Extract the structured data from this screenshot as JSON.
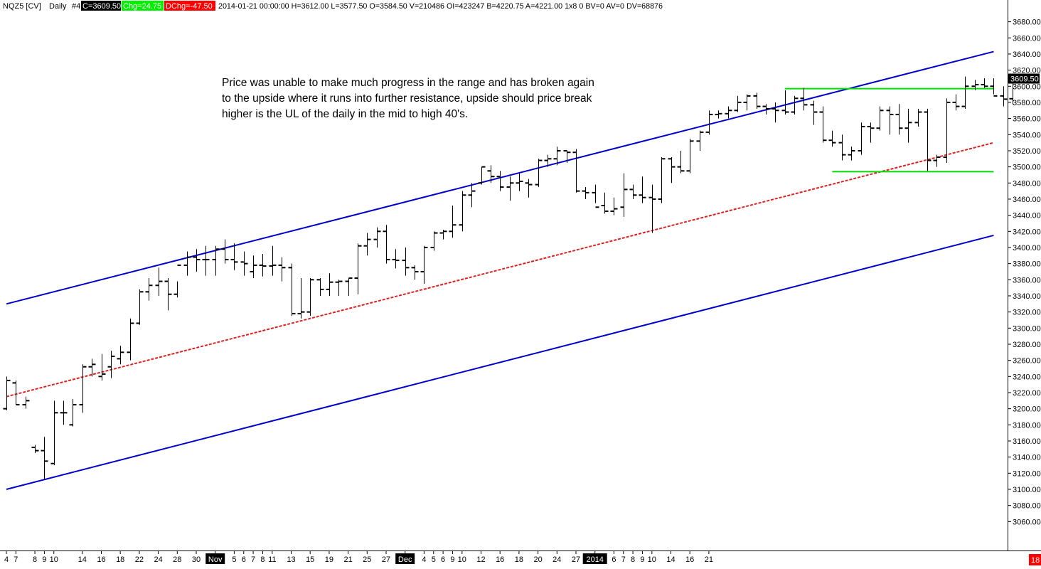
{
  "header": {
    "symbol": "NQZ5 [CV]",
    "period": "Daily",
    "num": "#4",
    "close": "C=3609.50",
    "chg": "Chg=24.75",
    "dchg": "DChg=-47.50",
    "info": "2014-01-21 00:00:00 H=3612.00 L=3577.50 O=3584.50 V=210486 OI=423247 B=4220.75 A=4221.00 1x8 0 BV=0 AV=0 DV=68876"
  },
  "colors": {
    "background": "#ffffff",
    "channel": "#0000cc",
    "midline": "#e02020",
    "support_resistance": "#00dd00",
    "bars": "#000000",
    "close_tag_bg": "#000000",
    "chg_bg": "#00ee00",
    "dchg_bg": "#ff0000",
    "corner_badge": "#ff0000"
  },
  "annotation": {
    "lines": [
      "Price was unable to make much progress in the range and has broken again",
      "to the upside where it runs into further resistance, upside should price break",
      "higher is the UL of the daily in the mid to high 40's."
    ]
  },
  "corner_badge": "18",
  "chart_data": {
    "type": "ohlc",
    "y_axis": {
      "range": [
        3040,
        3692
      ],
      "ticks": [
        "3060.00",
        "3080.00",
        "3100.00",
        "3120.00",
        "3140.00",
        "3160.00",
        "3180.00",
        "3200.00",
        "3220.00",
        "3240.00",
        "3260.00",
        "3280.00",
        "3300.00",
        "3320.00",
        "3340.00",
        "3360.00",
        "3380.00",
        "3400.00",
        "3420.00",
        "3440.00",
        "3460.00",
        "3480.00",
        "3500.00",
        "3520.00",
        "3540.00",
        "3560.00",
        "3580.00",
        "3600.00",
        "3620.00",
        "3640.00",
        "3660.00",
        "3680.00"
      ],
      "last_price_label": "3609.50",
      "last_price": 3609.5
    },
    "x_axis": {
      "labels": [
        {
          "i": 0,
          "text": "4",
          "boxed": false
        },
        {
          "i": 1,
          "text": "7",
          "boxed": false
        },
        {
          "i": 3,
          "text": "8",
          "boxed": false
        },
        {
          "i": 4,
          "text": "9",
          "boxed": false
        },
        {
          "i": 5,
          "text": "10",
          "boxed": false
        },
        {
          "i": 8,
          "text": "14",
          "boxed": false
        },
        {
          "i": 10,
          "text": "16",
          "boxed": false
        },
        {
          "i": 12,
          "text": "18",
          "boxed": false
        },
        {
          "i": 14,
          "text": "22",
          "boxed": false
        },
        {
          "i": 16,
          "text": "24",
          "boxed": false
        },
        {
          "i": 18,
          "text": "28",
          "boxed": false
        },
        {
          "i": 20,
          "text": "30",
          "boxed": false
        },
        {
          "i": 22,
          "text": "Nov",
          "boxed": true
        },
        {
          "i": 24,
          "text": "5",
          "boxed": false
        },
        {
          "i": 25,
          "text": "6",
          "boxed": false
        },
        {
          "i": 26,
          "text": "7",
          "boxed": false
        },
        {
          "i": 27,
          "text": "8",
          "boxed": false
        },
        {
          "i": 28,
          "text": "11",
          "boxed": false
        },
        {
          "i": 30,
          "text": "13",
          "boxed": false
        },
        {
          "i": 32,
          "text": "15",
          "boxed": false
        },
        {
          "i": 34,
          "text": "19",
          "boxed": false
        },
        {
          "i": 36,
          "text": "21",
          "boxed": false
        },
        {
          "i": 38,
          "text": "25",
          "boxed": false
        },
        {
          "i": 40,
          "text": "27",
          "boxed": false
        },
        {
          "i": 42,
          "text": "Dec",
          "boxed": true
        },
        {
          "i": 44,
          "text": "4",
          "boxed": false
        },
        {
          "i": 45,
          "text": "5",
          "boxed": false
        },
        {
          "i": 46,
          "text": "6",
          "boxed": false
        },
        {
          "i": 47,
          "text": "9",
          "boxed": false
        },
        {
          "i": 48,
          "text": "10",
          "boxed": false
        },
        {
          "i": 50,
          "text": "12",
          "boxed": false
        },
        {
          "i": 52,
          "text": "16",
          "boxed": false
        },
        {
          "i": 54,
          "text": "18",
          "boxed": false
        },
        {
          "i": 56,
          "text": "20",
          "boxed": false
        },
        {
          "i": 58,
          "text": "24",
          "boxed": false
        },
        {
          "i": 60,
          "text": "27",
          "boxed": false
        },
        {
          "i": 62,
          "text": "2014",
          "boxed": true
        },
        {
          "i": 64,
          "text": "6",
          "boxed": false
        },
        {
          "i": 65,
          "text": "7",
          "boxed": false
        },
        {
          "i": 66,
          "text": "8",
          "boxed": false
        },
        {
          "i": 67,
          "text": "9",
          "boxed": false
        },
        {
          "i": 68,
          "text": "10",
          "boxed": false
        },
        {
          "i": 70,
          "text": "14",
          "boxed": false
        },
        {
          "i": 72,
          "text": "16",
          "boxed": false
        },
        {
          "i": 74,
          "text": "21",
          "boxed": false
        }
      ]
    },
    "bars": [
      [
        3200,
        3240,
        3198,
        3235
      ],
      [
        3232,
        3235,
        3205,
        3205
      ],
      [
        3205,
        3215,
        3200,
        3210
      ],
      [
        3152,
        3155,
        3145,
        3148
      ],
      [
        3148,
        3165,
        3112,
        3135
      ],
      [
        3132,
        3210,
        3130,
        3195
      ],
      [
        3195,
        3210,
        3180,
        3195
      ],
      [
        3180,
        3212,
        3178,
        3205
      ],
      [
        3205,
        3255,
        3195,
        3252
      ],
      [
        3252,
        3262,
        3240,
        3255
      ],
      [
        3240,
        3268,
        3235,
        3243
      ],
      [
        3252,
        3272,
        3238,
        3265
      ],
      [
        3262,
        3278,
        3255,
        3270
      ],
      [
        3270,
        3312,
        3260,
        3306
      ],
      [
        3306,
        3348,
        3304,
        3345
      ],
      [
        3345,
        3362,
        3334,
        3353
      ],
      [
        3353,
        3375,
        3340,
        3358
      ],
      [
        3358,
        3362,
        3322,
        3342
      ],
      [
        3342,
        3358,
        3338,
        3378
      ],
      [
        3378,
        3395,
        3365,
        3388
      ],
      [
        3388,
        3398,
        3370,
        3385
      ],
      [
        3385,
        3402,
        3365,
        3385
      ],
      [
        3385,
        3402,
        3365,
        3398
      ],
      [
        3398,
        3410,
        3380,
        3385
      ],
      [
        3385,
        3405,
        3372,
        3382
      ],
      [
        3382,
        3395,
        3365,
        3380
      ],
      [
        3370,
        3390,
        3362,
        3378
      ],
      [
        3378,
        3392,
        3364,
        3377
      ],
      [
        3377,
        3402,
        3365,
        3378
      ],
      [
        3378,
        3388,
        3358,
        3375
      ],
      [
        3375,
        3380,
        3315,
        3318
      ],
      [
        3318,
        3362,
        3312,
        3320
      ],
      [
        3320,
        3362,
        3315,
        3360
      ],
      [
        3360,
        3362,
        3340,
        3348
      ],
      [
        3348,
        3368,
        3340,
        3357
      ],
      [
        3357,
        3360,
        3340,
        3358
      ],
      [
        3358,
        3362,
        3340,
        3362
      ],
      [
        3362,
        3405,
        3342,
        3402
      ],
      [
        3402,
        3418,
        3390,
        3410
      ],
      [
        3410,
        3425,
        3400,
        3420
      ],
      [
        3420,
        3428,
        3380,
        3385
      ],
      [
        3385,
        3398,
        3374,
        3384
      ],
      [
        3384,
        3400,
        3365,
        3375
      ],
      [
        3375,
        3378,
        3360,
        3370
      ],
      [
        3370,
        3402,
        3355,
        3400
      ],
      [
        3400,
        3420,
        3396,
        3418
      ],
      [
        3418,
        3422,
        3410,
        3420
      ],
      [
        3420,
        3452,
        3412,
        3428
      ],
      [
        3428,
        3470,
        3420,
        3465
      ],
      [
        3465,
        3480,
        3450,
        3470
      ],
      [
        3480,
        3500,
        3478,
        3500
      ],
      [
        3495,
        3502,
        3480,
        3488
      ],
      [
        3488,
        3495,
        3470,
        3475
      ],
      [
        3475,
        3488,
        3458,
        3480
      ],
      [
        3480,
        3492,
        3470,
        3482
      ],
      [
        3480,
        3485,
        3462,
        3478
      ],
      [
        3478,
        3510,
        3475,
        3508
      ],
      [
        3508,
        3515,
        3500,
        3510
      ],
      [
        3510,
        3525,
        3502,
        3520
      ],
      [
        3520,
        3520,
        3505,
        3518
      ],
      [
        3518,
        3522,
        3468,
        3470
      ],
      [
        3470,
        3475,
        3460,
        3468
      ],
      [
        3468,
        3478,
        3455,
        3450
      ],
      [
        3452,
        3468,
        3442,
        3445
      ],
      [
        3445,
        3462,
        3440,
        3448
      ],
      [
        3450,
        3492,
        3438,
        3472
      ],
      [
        3472,
        3478,
        3460,
        3465
      ],
      [
        3465,
        3488,
        3455,
        3462
      ],
      [
        3462,
        3478,
        3418,
        3460
      ],
      [
        3460,
        3512,
        3455,
        3510
      ],
      [
        3510,
        3512,
        3480,
        3500
      ],
      [
        3500,
        3520,
        3492,
        3495
      ],
      [
        3495,
        3535,
        3492,
        3532
      ],
      [
        3532,
        3545,
        3520,
        3543
      ],
      [
        3543,
        3570,
        3540,
        3565
      ],
      [
        3565,
        3570,
        3560,
        3566
      ],
      [
        3566,
        3575,
        3560,
        3570
      ],
      [
        3570,
        3588,
        3568,
        3580
      ],
      [
        3580,
        3590,
        3570,
        3588
      ],
      [
        3588,
        3592,
        3572,
        3575
      ],
      [
        3575,
        3578,
        3565,
        3572
      ],
      [
        3572,
        3580,
        3555,
        3570
      ],
      [
        3570,
        3595,
        3565,
        3568
      ],
      [
        3568,
        3588,
        3565,
        3585
      ],
      [
        3585,
        3598,
        3570,
        3577
      ],
      [
        3577,
        3582,
        3552,
        3568
      ],
      [
        3568,
        3575,
        3530,
        3533
      ],
      [
        3533,
        3545,
        3525,
        3530
      ],
      [
        3530,
        3540,
        3508,
        3515
      ],
      [
        3515,
        3525,
        3508,
        3520
      ],
      [
        3520,
        3555,
        3515,
        3550
      ],
      [
        3550,
        3555,
        3530,
        3548
      ],
      [
        3548,
        3575,
        3545,
        3570
      ],
      [
        3570,
        3575,
        3540,
        3565
      ],
      [
        3565,
        3578,
        3540,
        3548
      ],
      [
        3548,
        3572,
        3530,
        3555
      ],
      [
        3555,
        3572,
        3550,
        3568
      ],
      [
        3568,
        3572,
        3495,
        3508
      ],
      [
        3508,
        3515,
        3500,
        3512
      ],
      [
        3512,
        3585,
        3505,
        3580
      ],
      [
        3580,
        3590,
        3570,
        3575
      ],
      [
        3575,
        3612,
        3572,
        3600
      ],
      [
        3600,
        3608,
        3595,
        3602
      ],
      [
        3602,
        3610,
        3598,
        3600
      ],
      [
        3600,
        3610,
        3590,
        3588
      ],
      [
        3588,
        3600,
        3575,
        3584
      ],
      [
        3584.5,
        3612,
        3577.5,
        3609.5
      ]
    ],
    "lines": [
      {
        "name": "channel-upper",
        "from": [
          0,
          3330
        ],
        "to": [
          104,
          3643
        ]
      },
      {
        "name": "channel-lower",
        "from": [
          0,
          3100
        ],
        "to": [
          104,
          3415
        ]
      },
      {
        "name": "channel-mid",
        "from": [
          0,
          3215
        ],
        "to": [
          104,
          3530
        ]
      },
      {
        "name": "resistance",
        "from": [
          82,
          3597
        ],
        "to": [
          104,
          3597
        ]
      },
      {
        "name": "support",
        "from": [
          87,
          3494
        ],
        "to": [
          104,
          3494
        ]
      }
    ]
  }
}
